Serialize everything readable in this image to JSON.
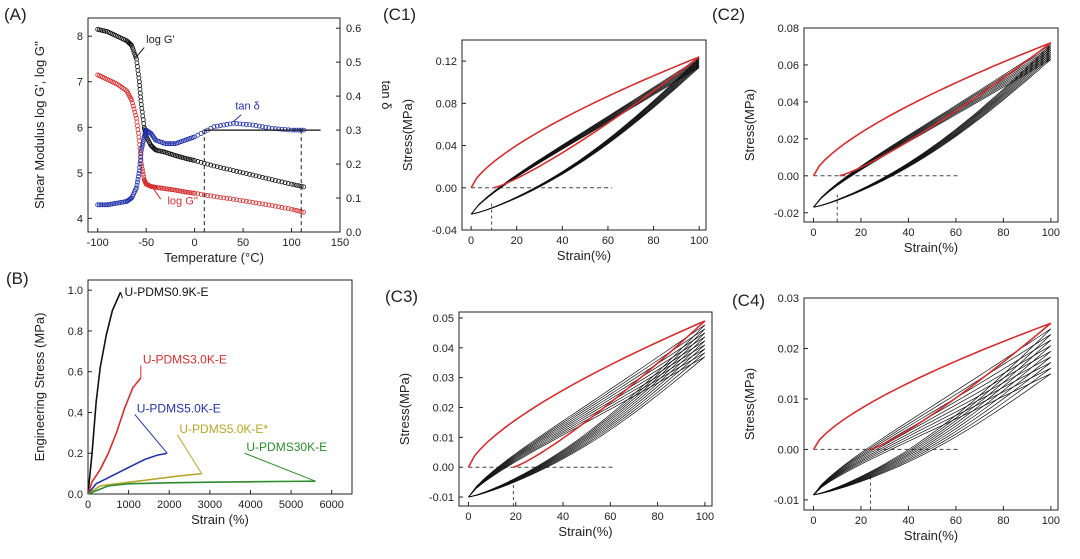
{
  "chart_data": [
    {
      "id": "A",
      "type": "scatter",
      "panel_label": "(A)",
      "xlabel": "Temperature (°C)",
      "ylabel": "Shear Modulus log G', log G''",
      "y2label": "tan δ",
      "xlim": [
        -110,
        150
      ],
      "ylim": [
        3.7,
        8.4
      ],
      "y2lim": [
        0,
        0.63
      ],
      "xticks": [
        "-100",
        "-50",
        "0",
        "50",
        "100",
        "150"
      ],
      "yticks": [
        "4",
        "5",
        "6",
        "7",
        "8"
      ],
      "y2ticks": [
        "0.0",
        "0.1",
        "0.2",
        "0.3",
        "0.4",
        "0.5",
        "0.6"
      ],
      "annotations": [
        "log G'",
        "tan δ",
        "log G''"
      ],
      "series": [
        {
          "name": "log G'",
          "axis": "left",
          "color": "#111111",
          "x": [
            -100,
            -90,
            -80,
            -70,
            -65,
            -60,
            -57,
            -55,
            -52,
            -50,
            -45,
            -40,
            -30,
            -20,
            -10,
            0,
            20,
            40,
            60,
            80,
            100,
            115
          ],
          "y": [
            8.15,
            8.1,
            8.0,
            7.9,
            7.8,
            7.5,
            7.0,
            6.5,
            6.0,
            5.8,
            5.6,
            5.5,
            5.45,
            5.38,
            5.32,
            5.27,
            5.15,
            5.05,
            4.95,
            4.85,
            4.75,
            4.68
          ]
        },
        {
          "name": "log G''",
          "axis": "left",
          "color": "#d32f2f",
          "x": [
            -100,
            -90,
            -80,
            -70,
            -65,
            -60,
            -57,
            -55,
            -52,
            -50,
            -45,
            -40,
            -30,
            -20,
            -10,
            0,
            20,
            40,
            60,
            80,
            100,
            115
          ],
          "y": [
            7.15,
            7.05,
            6.95,
            6.8,
            6.6,
            6.2,
            5.7,
            5.2,
            4.85,
            4.75,
            4.7,
            4.68,
            4.65,
            4.62,
            4.58,
            4.55,
            4.48,
            4.42,
            4.35,
            4.28,
            4.2,
            4.12
          ]
        },
        {
          "name": "tan δ",
          "axis": "right",
          "color": "#2233aa",
          "x": [
            -100,
            -90,
            -80,
            -70,
            -65,
            -60,
            -57,
            -55,
            -52,
            -50,
            -45,
            -40,
            -30,
            -20,
            -10,
            0,
            20,
            40,
            60,
            80,
            100,
            115
          ],
          "y": [
            0.08,
            0.08,
            0.085,
            0.09,
            0.1,
            0.13,
            0.18,
            0.24,
            0.28,
            0.3,
            0.29,
            0.27,
            0.26,
            0.26,
            0.27,
            0.28,
            0.31,
            0.32,
            0.315,
            0.305,
            0.3,
            0.3
          ]
        }
      ],
      "reference_line": {
        "x": [
          10,
          130
        ],
        "y2": 0.3
      },
      "vlines": [
        10,
        110
      ]
    },
    {
      "id": "B",
      "type": "line",
      "panel_label": "(B)",
      "xlabel": "Strain (%)",
      "ylabel": "Engineering Stress (MPa)",
      "xlim": [
        0,
        6500
      ],
      "ylim": [
        0,
        1.05
      ],
      "xticks": [
        "0",
        "1000",
        "2000",
        "3000",
        "4000",
        "5000",
        "6000"
      ],
      "yticks": [
        "0.0",
        "0.2",
        "0.4",
        "0.6",
        "0.8",
        "1.0"
      ],
      "series": [
        {
          "name": "U-PDMS0.9K-E",
          "color": "#111111",
          "x": [
            0,
            100,
            200,
            300,
            450,
            600,
            800
          ],
          "y": [
            0,
            0.2,
            0.45,
            0.62,
            0.78,
            0.9,
            0.99
          ]
        },
        {
          "name": "U-PDMS3.0K-E",
          "color": "#d32f2f",
          "x": [
            0,
            100,
            300,
            500,
            700,
            900,
            1100,
            1300
          ],
          "y": [
            0,
            0.06,
            0.12,
            0.2,
            0.3,
            0.42,
            0.52,
            0.57
          ]
        },
        {
          "name": "U-PDMS5.0K-E",
          "color": "#2233aa",
          "x": [
            0,
            200,
            500,
            800,
            1100,
            1400,
            1700,
            1950
          ],
          "y": [
            0,
            0.05,
            0.08,
            0.11,
            0.14,
            0.17,
            0.19,
            0.2
          ]
        },
        {
          "name": "U-PDMS5.0K-E*",
          "color": "#b5a52a",
          "x": [
            0,
            300,
            700,
            1100,
            1500,
            1900,
            2300,
            2800
          ],
          "y": [
            0,
            0.04,
            0.05,
            0.06,
            0.07,
            0.08,
            0.09,
            0.1
          ]
        },
        {
          "name": "U-PDMS30K-E",
          "color": "#2e8b2e",
          "x": [
            0,
            500,
            1000,
            2000,
            3000,
            4000,
            5000,
            5600
          ],
          "y": [
            0,
            0.04,
            0.05,
            0.055,
            0.058,
            0.06,
            0.062,
            0.063
          ]
        }
      ]
    },
    {
      "id": "C1",
      "type": "line",
      "panel_label": "(C1)",
      "xlabel": "Strain(%)",
      "ylabel": "Stress(MPa)",
      "xlim": [
        -4,
        103
      ],
      "ylim": [
        -0.04,
        0.14
      ],
      "xticks": [
        "0",
        "20",
        "40",
        "60",
        "80",
        "100"
      ],
      "yticks": [
        "-0.04",
        "0.00",
        "0.04",
        "0.08",
        "0.12"
      ],
      "first_cycle": {
        "max_stress": 0.124,
        "min_stress": -0.025,
        "return_strain": 10
      },
      "cycles": 10,
      "last_cycle_max": 0.114,
      "marker_strain": 9
    },
    {
      "id": "C2",
      "type": "line",
      "panel_label": "(C2)",
      "xlabel": "Strain(%)",
      "ylabel": "Stress(MPa)",
      "xlim": [
        -4,
        103
      ],
      "ylim": [
        -0.025,
        0.08
      ],
      "xticks": [
        "0",
        "20",
        "40",
        "60",
        "80",
        "100"
      ],
      "yticks": [
        "-0.02",
        "0.00",
        "0.02",
        "0.04",
        "0.06",
        "0.08"
      ],
      "first_cycle": {
        "max_stress": 0.072,
        "min_stress": -0.017,
        "return_strain": 11
      },
      "cycles": 10,
      "last_cycle_max": 0.063,
      "marker_strain": 10
    },
    {
      "id": "C3",
      "type": "line",
      "panel_label": "(C3)",
      "xlabel": "Strain(%)",
      "ylabel": "Stress(MPa)",
      "xlim": [
        -4,
        103
      ],
      "ylim": [
        -0.013,
        0.052
      ],
      "xticks": [
        "0",
        "20",
        "40",
        "60",
        "80",
        "100"
      ],
      "yticks": [
        "-0.01",
        "0.00",
        "0.01",
        "0.02",
        "0.03",
        "0.04",
        "0.05"
      ],
      "first_cycle": {
        "max_stress": 0.049,
        "min_stress": -0.01,
        "return_strain": 19
      },
      "cycles": 10,
      "last_cycle_max": 0.037,
      "marker_strain": 19
    },
    {
      "id": "C4",
      "type": "line",
      "panel_label": "(C4)",
      "xlabel": "Strain(%)",
      "ylabel": "Stress(MPa)",
      "xlim": [
        -4,
        103
      ],
      "ylim": [
        -0.012,
        0.03
      ],
      "xticks": [
        "0",
        "20",
        "40",
        "60",
        "80",
        "100"
      ],
      "yticks": [
        "-0.01",
        "0.00",
        "0.01",
        "0.02",
        "0.03"
      ],
      "first_cycle": {
        "max_stress": 0.025,
        "min_stress": -0.009,
        "return_strain": 24
      },
      "cycles": 10,
      "last_cycle_max": 0.015,
      "marker_strain": 24
    }
  ]
}
